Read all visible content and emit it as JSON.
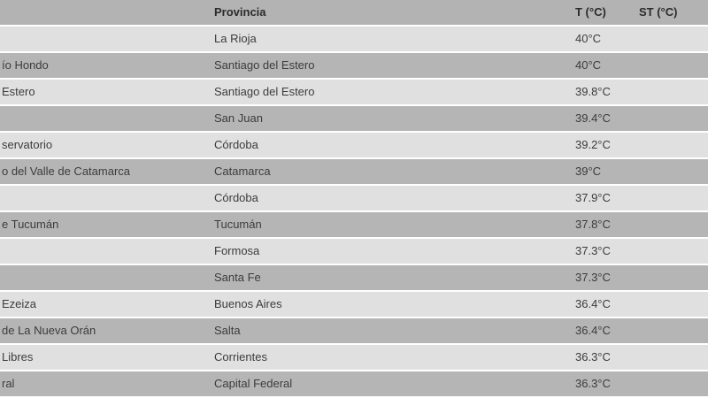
{
  "colors": {
    "header_bg": "#b3b3b3",
    "header_text": "#2b2b2b",
    "row_dark_bg": "#b5b5b5",
    "row_light_bg": "#e0e0e0",
    "text": "#3c3c3c",
    "separator": "#ffffff"
  },
  "table": {
    "column_keys": [
      "station",
      "provincia",
      "t",
      "st"
    ],
    "headers": {
      "station": "",
      "provincia": "Provincia",
      "t": "T (°C)",
      "st": "ST (°C)"
    },
    "rows": [
      {
        "station": "",
        "provincia": "La Rioja",
        "t": "40°C",
        "st": ""
      },
      {
        "station": "ío Hondo",
        "provincia": "Santiago del Estero",
        "t": "40°C",
        "st": ""
      },
      {
        "station": "Estero",
        "provincia": "Santiago del Estero",
        "t": "39.8°C",
        "st": ""
      },
      {
        "station": "",
        "provincia": "San Juan",
        "t": "39.4°C",
        "st": ""
      },
      {
        "station": "servatorio",
        "provincia": "Córdoba",
        "t": "39.2°C",
        "st": ""
      },
      {
        "station": "o del Valle de Catamarca",
        "provincia": "Catamarca",
        "t": "39°C",
        "st": ""
      },
      {
        "station": "",
        "provincia": "Córdoba",
        "t": "37.9°C",
        "st": ""
      },
      {
        "station": "e Tucumán",
        "provincia": "Tucumán",
        "t": "37.8°C",
        "st": ""
      },
      {
        "station": "",
        "provincia": "Formosa",
        "t": "37.3°C",
        "st": ""
      },
      {
        "station": "",
        "provincia": "Santa Fe",
        "t": "37.3°C",
        "st": ""
      },
      {
        "station": "Ezeiza",
        "provincia": "Buenos Aires",
        "t": "36.4°C",
        "st": ""
      },
      {
        "station": "de La Nueva Orán",
        "provincia": "Salta",
        "t": "36.4°C",
        "st": ""
      },
      {
        "station": "Libres",
        "provincia": "Corrientes",
        "t": "36.3°C",
        "st": ""
      },
      {
        "station": "ral",
        "provincia": "Capital Federal",
        "t": "36.3°C",
        "st": ""
      }
    ]
  }
}
